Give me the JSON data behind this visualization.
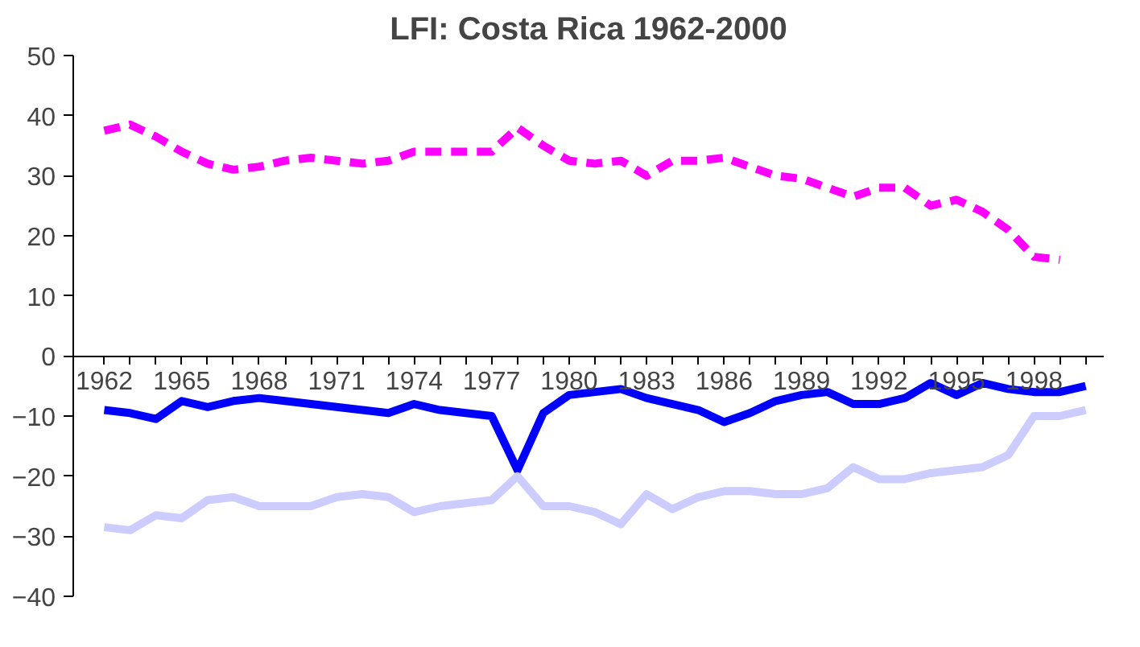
{
  "chart_data": {
    "type": "line",
    "title": "LFI: Costa Rica 1962-2000",
    "categories": [
      "1962",
      null,
      null,
      "1965",
      null,
      null,
      "1968",
      null,
      null,
      "1971",
      null,
      null,
      "1974",
      null,
      null,
      "1977",
      null,
      null,
      "1980",
      null,
      null,
      "1983",
      null,
      null,
      "1986",
      null,
      null,
      "1989",
      null,
      null,
      "1992",
      null,
      null,
      "1995",
      null,
      null,
      "1998",
      null,
      null
    ],
    "ylim": [
      -40,
      50
    ],
    "yticks": [
      -40,
      -30,
      -20,
      -10,
      0,
      10,
      20,
      30,
      40,
      50
    ],
    "grid": false,
    "series": [
      {
        "color": "#ff00ff",
        "line_style": "dashed",
        "values": [
          37.5,
          38.5,
          36.5,
          34,
          32,
          31,
          31.5,
          32.5,
          33,
          32.5,
          32,
          32.5,
          34,
          34,
          34,
          34,
          38,
          35,
          32.5,
          32,
          32.5,
          30,
          32.5,
          32.5,
          33,
          31.5,
          30,
          29.5,
          28,
          26.5,
          28,
          28,
          25,
          26,
          24,
          21,
          16.5,
          16,
          null
        ]
      },
      {
        "color": "#0000ff",
        "line_style": "solid",
        "values": [
          -9,
          -9.5,
          -10.5,
          -7.5,
          -8.5,
          -7.5,
          -7,
          -7.5,
          -8,
          -8.5,
          -9,
          -9.5,
          -8,
          -9,
          -9.5,
          -10,
          -19,
          -9.5,
          -6.5,
          -6,
          -5.5,
          -7,
          -8,
          -9,
          -11,
          -9.5,
          -7.5,
          -6.5,
          -6,
          -8,
          -8,
          -7,
          -4.5,
          -6.5,
          -4.5,
          -5.5,
          -6,
          -6,
          -5
        ]
      },
      {
        "color": "#ccccff",
        "line_style": "solid",
        "values": [
          -28.5,
          -29,
          -26.5,
          -27,
          -24,
          -23.5,
          -25,
          -25,
          -25,
          -23.5,
          -23,
          -23.5,
          -26,
          -25,
          -24.5,
          -24,
          -20,
          -25,
          -25,
          -26,
          -28,
          -23,
          -25.5,
          -23.5,
          -22.5,
          -22.5,
          -23,
          -23,
          -22,
          -18.5,
          -20.5,
          -20.5,
          -19.5,
          -19,
          -18.5,
          -16.5,
          -10,
          -10,
          -9
        ]
      }
    ]
  }
}
